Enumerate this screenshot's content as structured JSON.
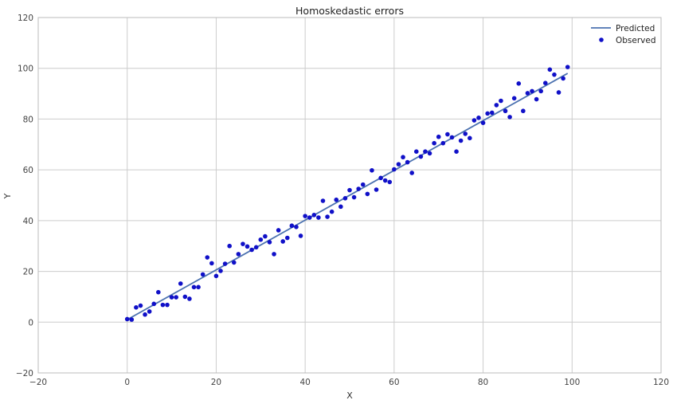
{
  "chart_data": {
    "type": "scatter",
    "title": "Homoskedastic errors",
    "xlabel": "X",
    "ylabel": "Y",
    "xlim": [
      -20,
      120
    ],
    "ylim": [
      -20,
      120
    ],
    "x_ticks": [
      "−20",
      "0",
      "20",
      "40",
      "60",
      "80",
      "100",
      "120"
    ],
    "y_ticks": [
      "−20",
      "0",
      "20",
      "40",
      "60",
      "80",
      "100",
      "120"
    ],
    "x_tick_values": [
      -20,
      0,
      20,
      40,
      60,
      80,
      100,
      120
    ],
    "y_tick_values": [
      -20,
      0,
      20,
      40,
      60,
      80,
      100,
      120
    ],
    "grid": true,
    "legend_position": "top-right",
    "legend": [
      "Predicted",
      "Observed"
    ],
    "predicted": {
      "name": "Predicted",
      "color": "#4c72b0",
      "x": [
        0,
        99
      ],
      "y": [
        1.0,
        98.0
      ]
    },
    "observed": {
      "name": "Observed",
      "color": "#1010c8",
      "x": [
        0,
        1,
        2,
        3,
        4,
        5,
        6,
        7,
        8,
        9,
        10,
        11,
        12,
        13,
        14,
        15,
        16,
        17,
        18,
        19,
        20,
        21,
        22,
        23,
        24,
        25,
        26,
        27,
        28,
        29,
        30,
        31,
        32,
        33,
        34,
        35,
        36,
        37,
        38,
        39,
        40,
        41,
        42,
        43,
        44,
        45,
        46,
        47,
        48,
        49,
        50,
        51,
        52,
        53,
        54,
        55,
        56,
        57,
        58,
        59,
        60,
        61,
        62,
        63,
        64,
        65,
        66,
        67,
        68,
        69,
        70,
        71,
        72,
        73,
        74,
        75,
        76,
        77,
        78,
        79,
        80,
        81,
        82,
        83,
        84,
        85,
        86,
        87,
        88,
        89,
        90,
        91,
        92,
        93,
        94,
        95,
        96,
        97,
        98,
        99
      ],
      "y": [
        1.2,
        1.0,
        5.8,
        6.5,
        3.0,
        4.2,
        7.2,
        11.8,
        6.8,
        6.8,
        9.8,
        9.8,
        15.2,
        10.0,
        9.2,
        13.8,
        13.8,
        18.8,
        25.5,
        23.2,
        18.2,
        20.2,
        23.0,
        30.0,
        23.5,
        26.8,
        30.8,
        29.8,
        28.5,
        29.5,
        32.5,
        33.8,
        31.5,
        26.8,
        36.2,
        31.8,
        33.2,
        38.0,
        37.5,
        34.0,
        41.8,
        41.2,
        42.2,
        41.2,
        47.8,
        41.5,
        43.5,
        48.2,
        45.5,
        48.8,
        52.0,
        49.2,
        52.5,
        54.2,
        50.5,
        59.8,
        52.2,
        56.8,
        55.8,
        55.2,
        60.2,
        62.2,
        65.0,
        63.0,
        58.8,
        67.2,
        65.2,
        67.2,
        66.5,
        70.5,
        73.0,
        70.5,
        74.0,
        72.8,
        67.2,
        71.5,
        74.2,
        72.5,
        79.5,
        80.5,
        78.5,
        82.2,
        82.5,
        85.5,
        87.2,
        83.2,
        80.8,
        88.2,
        94.0,
        83.2,
        90.2,
        91.0,
        87.8,
        91.0,
        94.2,
        99.5,
        97.5,
        90.5,
        96.0,
        100.5
      ]
    }
  }
}
